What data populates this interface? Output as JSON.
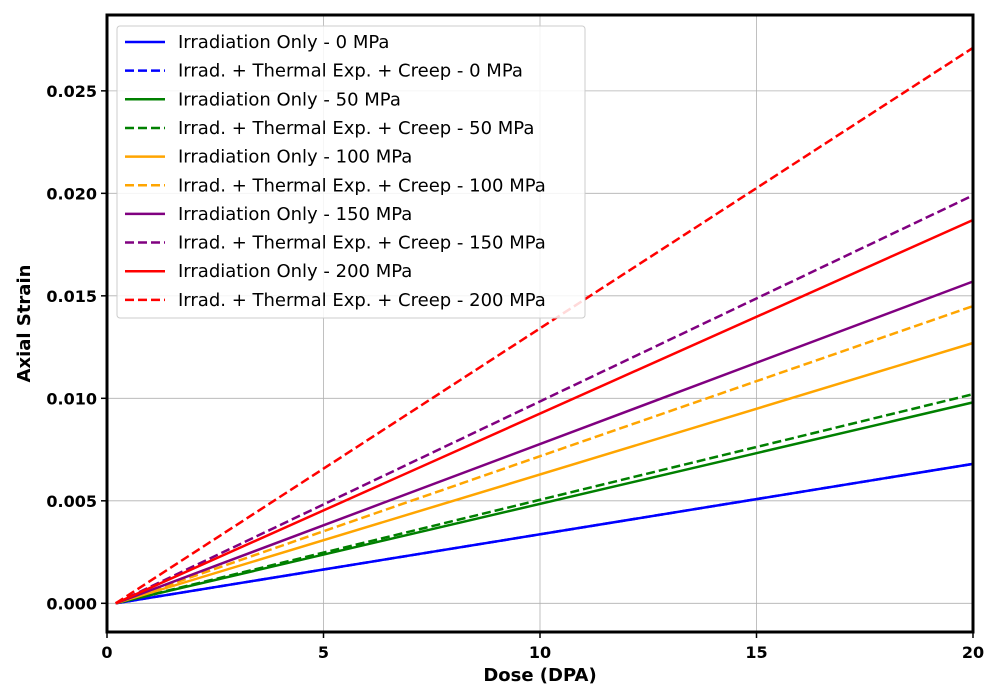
{
  "chart_data": {
    "type": "line",
    "title": "",
    "xlabel": "Dose (DPA)",
    "ylabel": "Axial Strain",
    "xlim": [
      0,
      20
    ],
    "ylim": [
      -0.0014,
      0.0287
    ],
    "grid": true,
    "legend_position": "top-left",
    "x_ticks": [
      0,
      5,
      10,
      15,
      20
    ],
    "x_tick_labels": [
      "0",
      "5",
      "10",
      "15",
      "20"
    ],
    "y_ticks": [
      0.0,
      0.005,
      0.01,
      0.015,
      0.02,
      0.025
    ],
    "y_tick_labels": [
      "0.000",
      "0.005",
      "0.010",
      "0.015",
      "0.020",
      "0.025"
    ],
    "x": [
      0.2,
      20
    ],
    "series": [
      {
        "name": "Irradiation Only - 0 MPa",
        "color": "#0000ff",
        "style": "solid",
        "values": [
          0.0,
          0.0068
        ]
      },
      {
        "name": "Irrad. + Thermal Exp. + Creep - 0 MPa",
        "color": "#0000ff",
        "style": "dashed",
        "values": [
          0.0,
          0.0068
        ]
      },
      {
        "name": "Irradiation Only - 50 MPa",
        "color": "#008000",
        "style": "solid",
        "values": [
          0.0,
          0.0098
        ]
      },
      {
        "name": "Irrad. + Thermal Exp. + Creep - 50 MPa",
        "color": "#008000",
        "style": "dashed",
        "values": [
          0.0,
          0.0102
        ]
      },
      {
        "name": "Irradiation Only - 100 MPa",
        "color": "#ffa500",
        "style": "solid",
        "values": [
          0.0,
          0.0127
        ]
      },
      {
        "name": "Irrad. + Thermal Exp. + Creep - 100 MPa",
        "color": "#ffa500",
        "style": "dashed",
        "values": [
          0.0,
          0.0145
        ]
      },
      {
        "name": "Irradiation Only - 150 MPa",
        "color": "#800080",
        "style": "solid",
        "values": [
          0.0,
          0.0157
        ]
      },
      {
        "name": "Irrad. + Thermal Exp. + Creep - 150 MPa",
        "color": "#800080",
        "style": "dashed",
        "values": [
          0.0,
          0.0199
        ]
      },
      {
        "name": "Irradiation Only - 200 MPa",
        "color": "#ff0000",
        "style": "solid",
        "values": [
          0.0,
          0.0187
        ]
      },
      {
        "name": "Irrad. + Thermal Exp. + Creep - 200 MPa",
        "color": "#ff0000",
        "style": "dashed",
        "values": [
          0.0,
          0.0271
        ]
      }
    ]
  }
}
